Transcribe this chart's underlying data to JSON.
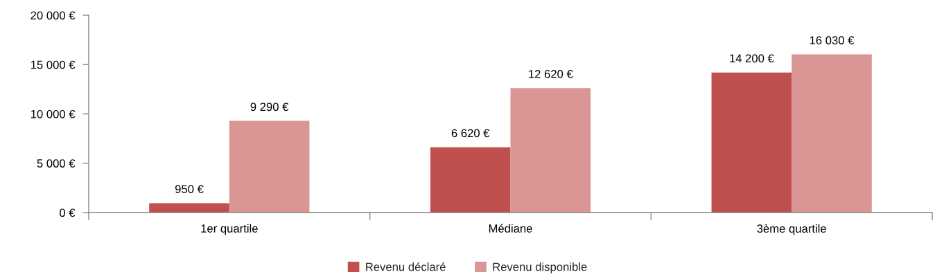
{
  "chart_data": {
    "type": "bar",
    "categories": [
      "1er quartile",
      "Médiane",
      "3ème quartile"
    ],
    "series": [
      {
        "name": "Revenu déclaré",
        "color": "#c0504d",
        "values": [
          950,
          6620,
          14200
        ],
        "value_labels": [
          "950 €",
          "6 620 €",
          "14 200 €"
        ]
      },
      {
        "name": "Revenu disponible",
        "color": "#d99694",
        "values": [
          9290,
          12620,
          16030
        ],
        "value_labels": [
          "9 290 €",
          "12 620 €",
          "16 030 €"
        ]
      }
    ],
    "ylim": [
      0,
      20000
    ],
    "yticks": [
      {
        "value": 0,
        "label": "0 €"
      },
      {
        "value": 5000,
        "label": "5 000 €"
      },
      {
        "value": 10000,
        "label": "10 000 €"
      },
      {
        "value": 15000,
        "label": "15 000 €"
      },
      {
        "value": 20000,
        "label": "20 000 €"
      }
    ],
    "grid": false,
    "legend": "bottom"
  }
}
